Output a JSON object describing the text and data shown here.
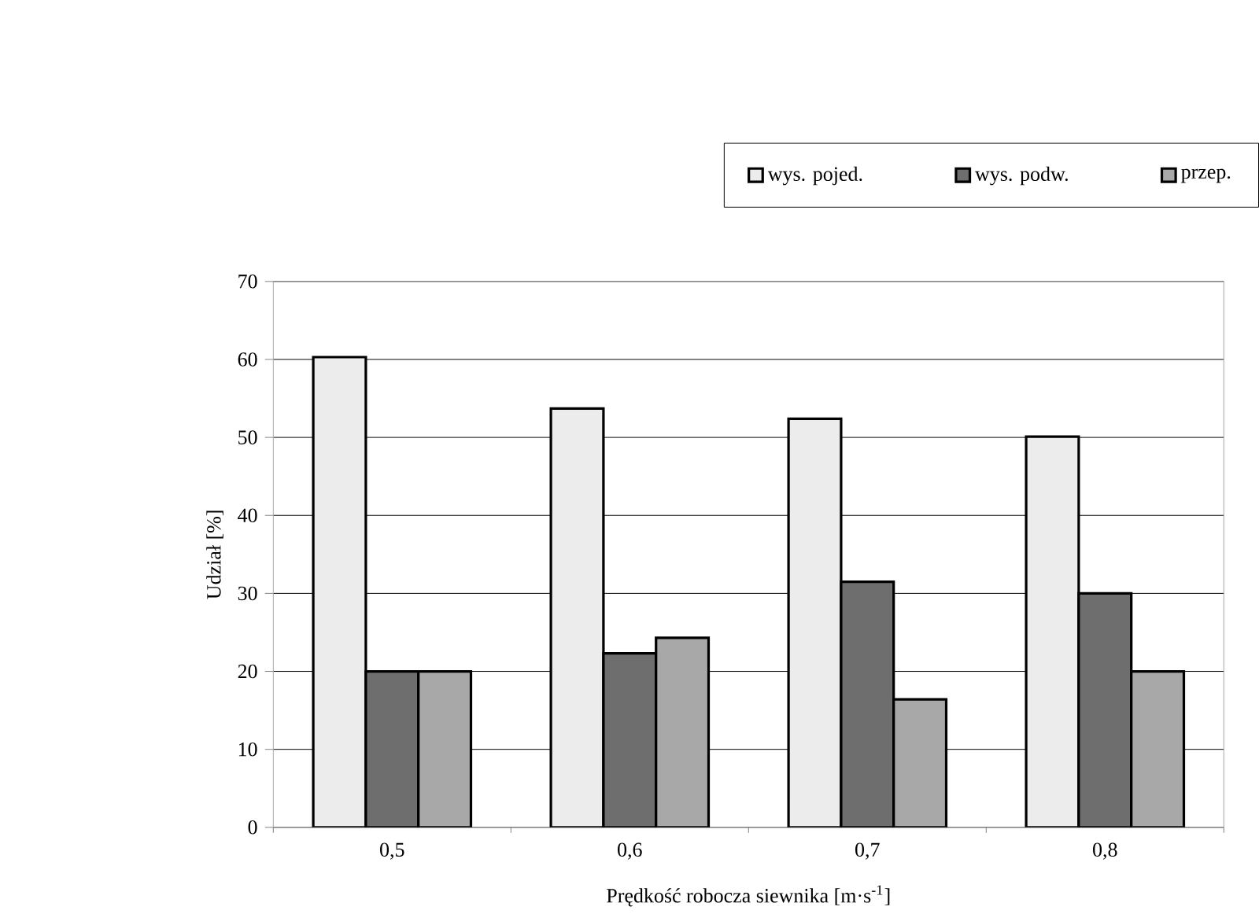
{
  "chart_data": {
    "type": "bar",
    "xlabel": "Prędkość robocza siewnika [m·s$^{-1}$]",
    "ylabel": "Udział [%]",
    "categories": [
      "0,5",
      "0,6",
      "0,7",
      "0,8"
    ],
    "series": [
      {
        "name": "wys. pojed.",
        "color": "#ececec",
        "values": [
          60.3,
          53.7,
          52.4,
          50.1
        ]
      },
      {
        "name": "wys. podw.",
        "color": "#6e6e6e",
        "values": [
          20,
          22.3,
          31.5,
          30
        ]
      },
      {
        "name": "przep.",
        "color": "#a8a8a8",
        "values": [
          20,
          24.3,
          16.4,
          20
        ]
      }
    ],
    "ylim": [
      0,
      70
    ],
    "yticks": [
      0,
      10,
      20,
      30,
      40,
      50,
      60,
      70
    ],
    "grid": "y",
    "legend": "top right"
  }
}
